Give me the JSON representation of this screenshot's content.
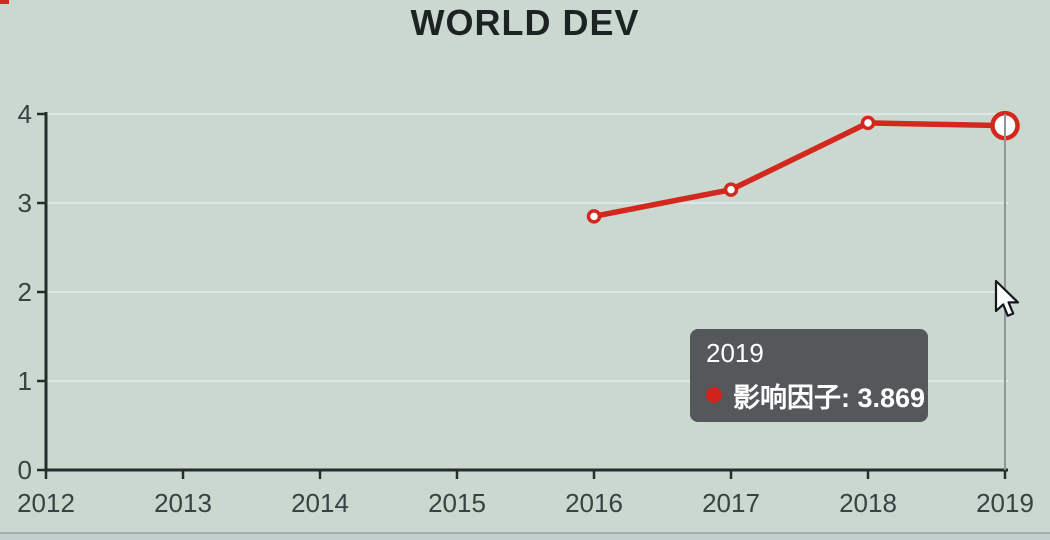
{
  "title": "WORLD DEV",
  "colors": {
    "background": "#cbd8d0",
    "series_red": "#d3281e",
    "axis": "#242c2c",
    "tick_label": "#394242",
    "title_text": "#1b2323",
    "gridline": "rgba(255,255,255,0.4)",
    "crosshair": "#8d9699",
    "tooltip_bg": "#54585a",
    "tooltip_text": "#ffffff",
    "marker_fill": "#ffffff",
    "tooltip_dot": "#cf231b"
  },
  "chart_data": {
    "type": "line",
    "title": "WORLD DEV",
    "categories": [
      "2012",
      "2013",
      "2014",
      "2015",
      "2016",
      "2017",
      "2018",
      "2019"
    ],
    "series": [
      {
        "name": "影响因子",
        "color": "#d3281e",
        "values": [
          null,
          null,
          null,
          null,
          2.85,
          3.15,
          3.9,
          3.869
        ]
      }
    ],
    "xlabel": "",
    "ylabel": "",
    "ylim": [
      0,
      4
    ],
    "yticks": [
      0,
      1,
      2,
      3,
      4
    ],
    "grid": true,
    "legend": "none",
    "highlighted": {
      "category": "2019",
      "value": 3.869
    }
  },
  "tooltip": {
    "year": "2019",
    "series_name": "影响因子",
    "value": "3.869",
    "label": "影响因子: 3.869"
  }
}
